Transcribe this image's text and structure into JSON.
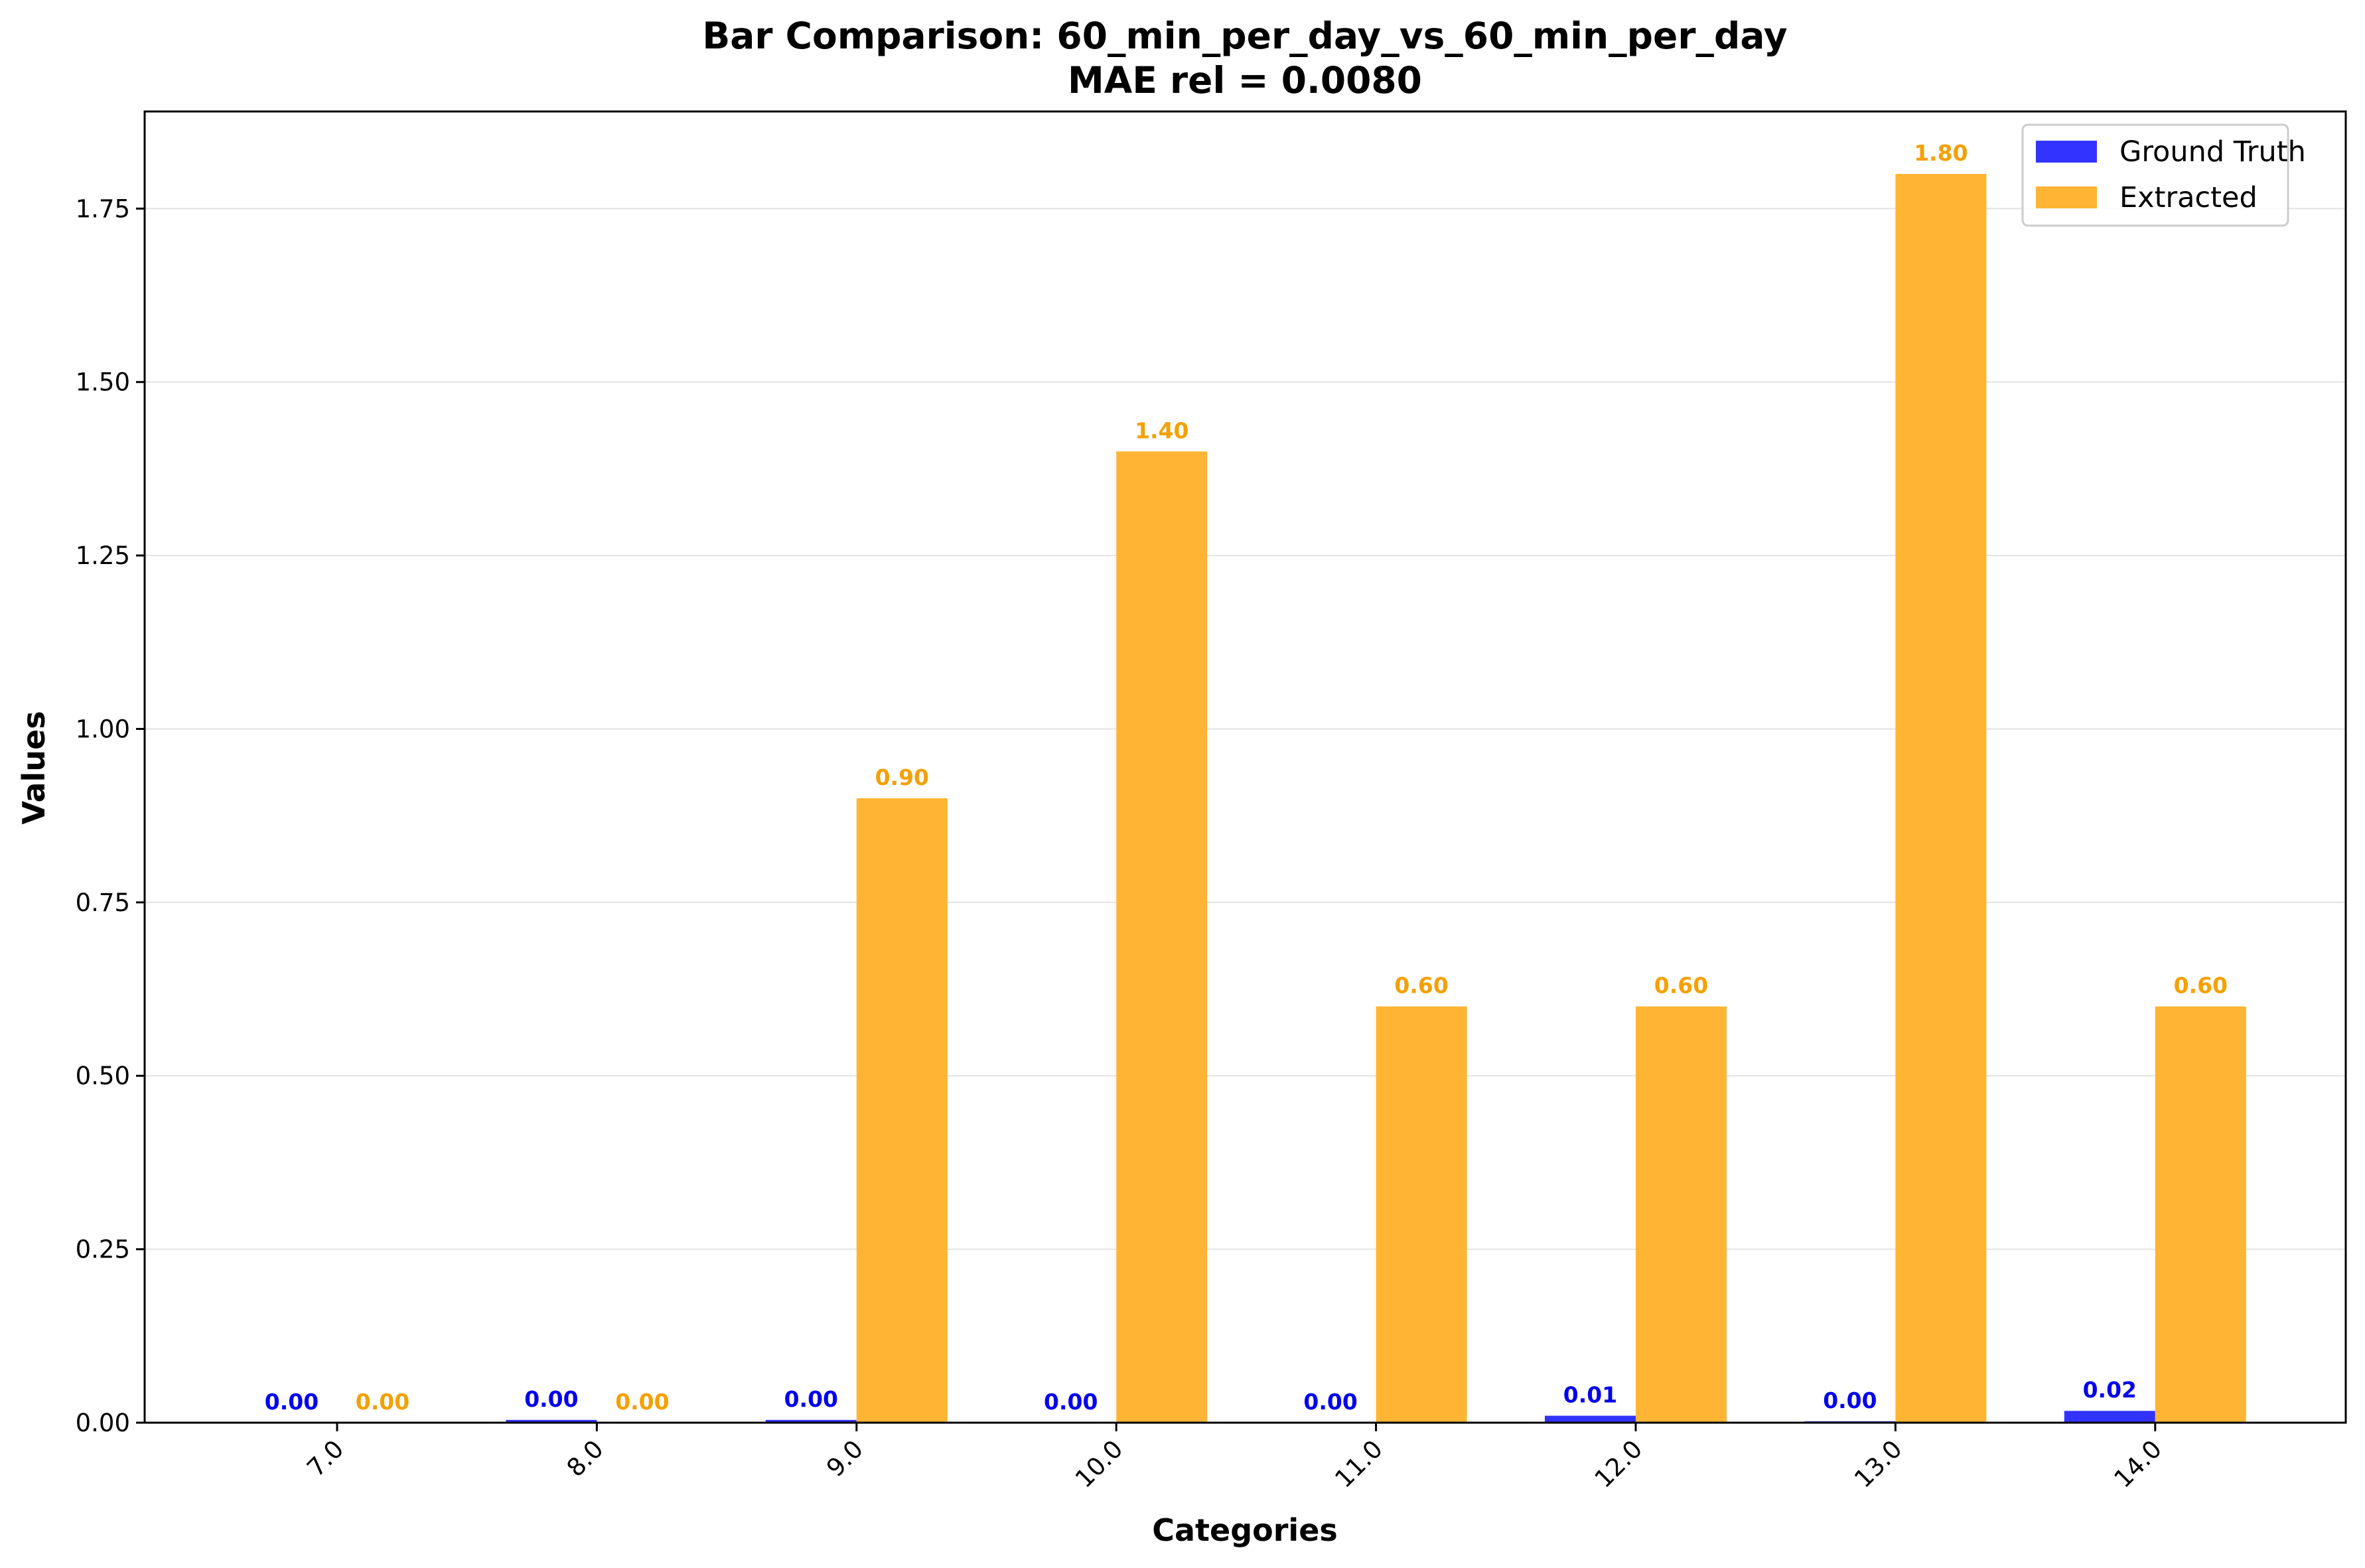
{
  "chart_data": {
    "type": "bar",
    "title": "Bar Comparison: 60_min_per_day_vs_60_min_per_day",
    "subtitle": "MAE rel = 0.0080",
    "xlabel": "Categories",
    "ylabel": "Values",
    "categories": [
      "7.0",
      "8.0",
      "9.0",
      "10.0",
      "11.0",
      "12.0",
      "13.0",
      "14.0"
    ],
    "ylim": [
      0,
      1.89
    ],
    "yticks": [
      "0.00",
      "0.25",
      "0.50",
      "0.75",
      "1.00",
      "1.25",
      "1.50",
      "1.75"
    ],
    "grid": "horizontal",
    "legend_position": "top-right",
    "series": [
      {
        "name": "Ground Truth",
        "color": "#3333ff",
        "label_color": "#0000ee",
        "values": [
          0.0,
          0.004,
          0.004,
          0.0,
          0.0,
          0.01,
          0.002,
          0.017
        ],
        "labels": [
          "0.00",
          "0.00",
          "0.00",
          "0.00",
          "0.00",
          "0.01",
          "0.00",
          "0.02"
        ]
      },
      {
        "name": "Extracted",
        "color": "#ffb533",
        "label_color": "#f5a000",
        "values": [
          0.0,
          0.0,
          0.9,
          1.4,
          0.6,
          0.6,
          1.8,
          0.6
        ],
        "labels": [
          "0.00",
          "0.00",
          "0.90",
          "1.40",
          "0.60",
          "0.60",
          "1.80",
          "0.60"
        ]
      }
    ]
  }
}
